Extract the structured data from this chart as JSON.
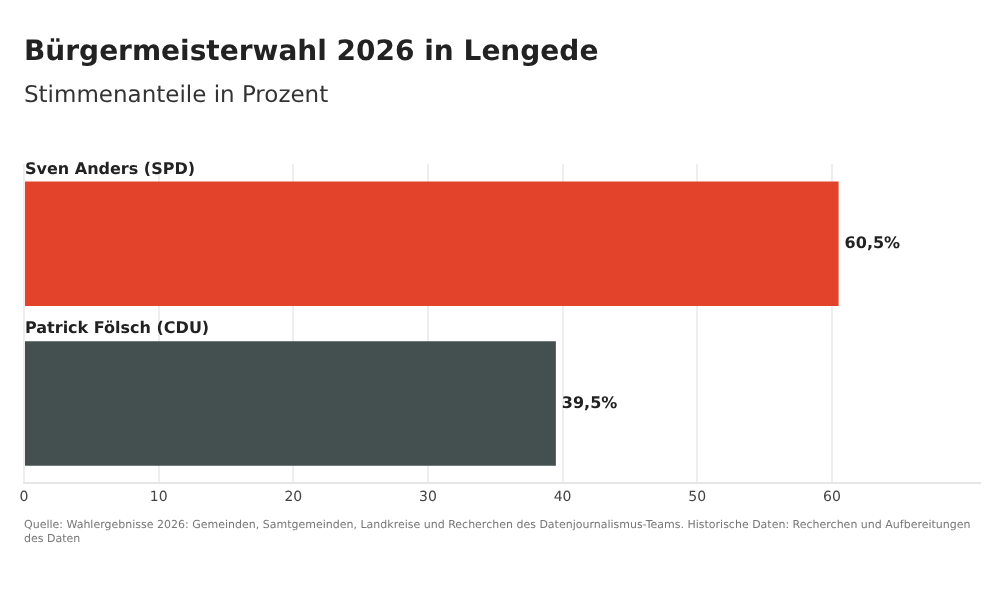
{
  "chart_data": {
    "type": "bar",
    "orientation": "horizontal",
    "title": "Bürgermeisterwahl 2026 in Lengede",
    "subtitle": "Stimmenanteile in Prozent",
    "categories": [
      "Sven Anders (SPD)",
      "Patrick Fölsch (CDU)"
    ],
    "values": [
      60.5,
      39.5
    ],
    "colors": [
      "#e3432a",
      "#444f4f"
    ],
    "value_labels": [
      "60,5%",
      "39,5%"
    ],
    "xlim": [
      0,
      71
    ],
    "xticks": [
      0,
      10,
      20,
      30,
      40,
      50,
      60
    ],
    "grid": "x",
    "annotations": [
      "Quelle: Wahlergebnisse 2026: Gemeinden, Samtgemeinden, Landkreise und Recherchen des Datenjournalismus-Teams. Historische Daten: Recherchen und Aufbereitungen des Daten"
    ]
  }
}
